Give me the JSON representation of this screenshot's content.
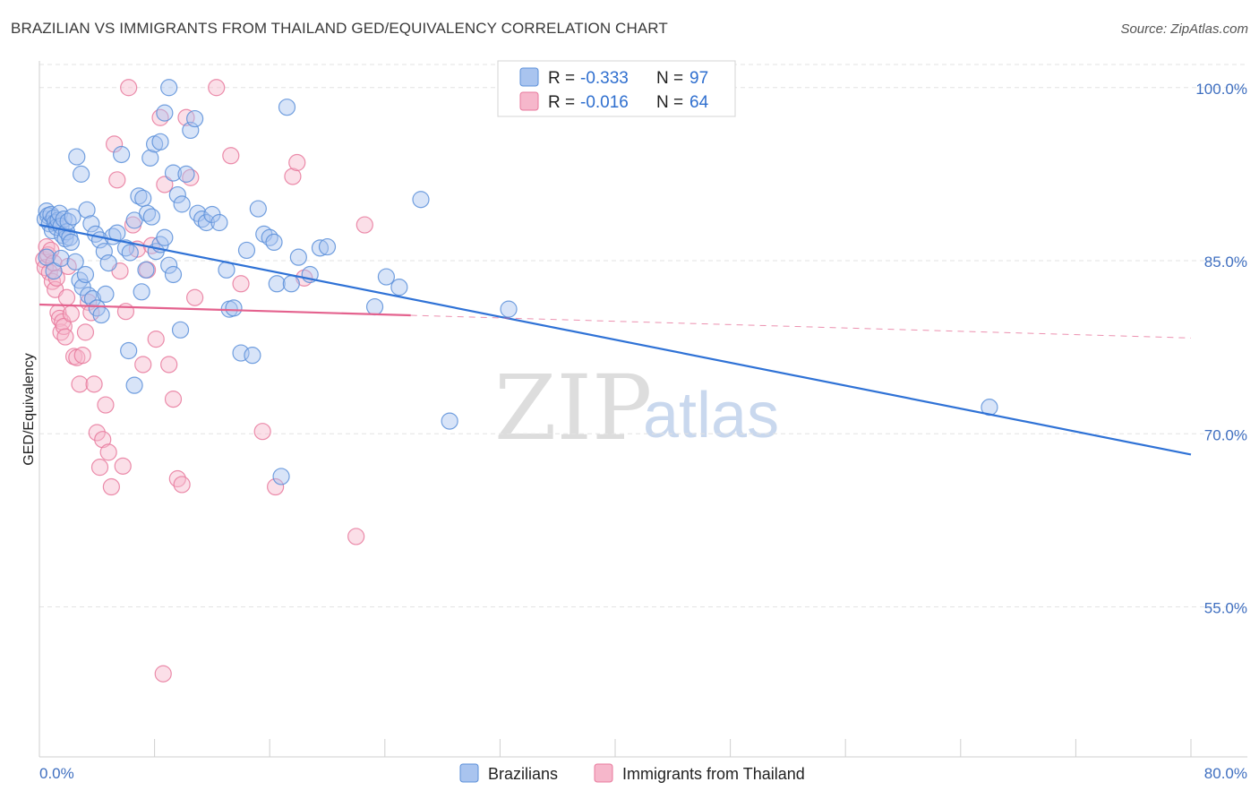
{
  "title": "BRAZILIAN VS IMMIGRANTS FROM THAILAND GED/EQUIVALENCY CORRELATION CHART",
  "source": "Source: ZipAtlas.com",
  "watermark": {
    "zip": "ZIP",
    "atlas": "atlas"
  },
  "colors": {
    "blue": "#5b8fd9",
    "blue_fill": "#a9c4ef",
    "blue_line": "#2f72d6",
    "pink": "#e8799c",
    "pink_fill": "#f6b7cb",
    "pink_line": "#e4628e",
    "grid": "#e3e3e3",
    "tick_label": "#3f6fc0"
  },
  "chart_data": {
    "type": "scatter",
    "title": "BRAZILIAN VS IMMIGRANTS FROM THAILAND GED/EQUIVALENCY CORRELATION CHART",
    "xlabel": "",
    "ylabel": "GED/Equivalency",
    "xlim": [
      0,
      80
    ],
    "ylim": [
      42,
      102
    ],
    "x_tick_labels": [
      "0.0%",
      "80.0%"
    ],
    "y_ticks": [
      55,
      70,
      85,
      100
    ],
    "y_tick_labels": [
      "55.0%",
      "70.0%",
      "85.0%",
      "100.0%"
    ],
    "legend": [
      {
        "name": "Brazilians",
        "r_label": "R =",
        "r": "-0.333",
        "n_label": "N =",
        "n": "97"
      },
      {
        "name": "Immigrants from Thailand",
        "r_label": "R =",
        "r": "-0.016",
        "n_label": "N =",
        "n": "64"
      }
    ],
    "series": [
      {
        "name": "Brazilians",
        "trend": {
          "x": [
            0,
            80
          ],
          "y": [
            88.1,
            68.2
          ],
          "dashed_from": null
        },
        "points": [
          [
            0.4,
            88.6
          ],
          [
            0.5,
            89.3
          ],
          [
            0.6,
            88.9
          ],
          [
            0.7,
            88.2
          ],
          [
            0.8,
            89.0
          ],
          [
            0.9,
            87.6
          ],
          [
            1.0,
            88.7
          ],
          [
            1.1,
            88.3
          ],
          [
            1.2,
            87.9
          ],
          [
            1.3,
            88.5
          ],
          [
            1.4,
            89.1
          ],
          [
            1.5,
            88.0
          ],
          [
            1.6,
            87.2
          ],
          [
            1.7,
            88.6
          ],
          [
            1.8,
            86.9
          ],
          [
            1.9,
            87.5
          ],
          [
            2.0,
            88.4
          ],
          [
            2.1,
            87.0
          ],
          [
            2.2,
            86.6
          ],
          [
            2.3,
            88.8
          ],
          [
            0.5,
            85.3
          ],
          [
            1.0,
            84.1
          ],
          [
            1.5,
            85.2
          ],
          [
            2.5,
            84.9
          ],
          [
            2.8,
            83.3
          ],
          [
            3.0,
            82.7
          ],
          [
            3.2,
            83.8
          ],
          [
            3.4,
            82.0
          ],
          [
            3.7,
            81.7
          ],
          [
            4.0,
            80.9
          ],
          [
            4.3,
            80.3
          ],
          [
            4.6,
            82.1
          ],
          [
            2.6,
            94.0
          ],
          [
            2.9,
            92.5
          ],
          [
            3.3,
            89.4
          ],
          [
            3.6,
            88.2
          ],
          [
            3.9,
            87.3
          ],
          [
            4.2,
            86.8
          ],
          [
            4.5,
            85.8
          ],
          [
            4.8,
            84.8
          ],
          [
            5.1,
            87.1
          ],
          [
            5.4,
            87.4
          ],
          [
            5.7,
            94.2
          ],
          [
            6.0,
            86.1
          ],
          [
            6.3,
            85.7
          ],
          [
            6.6,
            88.5
          ],
          [
            6.9,
            90.6
          ],
          [
            7.2,
            90.4
          ],
          [
            7.5,
            89.1
          ],
          [
            7.8,
            88.8
          ],
          [
            8.1,
            85.8
          ],
          [
            8.4,
            86.4
          ],
          [
            8.7,
            87.0
          ],
          [
            9.0,
            84.6
          ],
          [
            9.3,
            83.8
          ],
          [
            6.2,
            77.2
          ],
          [
            6.6,
            74.2
          ],
          [
            7.1,
            82.3
          ],
          [
            7.4,
            84.2
          ],
          [
            7.7,
            93.9
          ],
          [
            8.0,
            95.1
          ],
          [
            8.4,
            95.3
          ],
          [
            8.7,
            97.8
          ],
          [
            9.0,
            100.0
          ],
          [
            9.3,
            92.6
          ],
          [
            9.6,
            90.7
          ],
          [
            9.9,
            89.9
          ],
          [
            10.2,
            92.5
          ],
          [
            10.5,
            96.3
          ],
          [
            10.8,
            97.3
          ],
          [
            11.0,
            89.1
          ],
          [
            11.3,
            88.6
          ],
          [
            11.6,
            88.3
          ],
          [
            12.0,
            89.0
          ],
          [
            12.5,
            88.3
          ],
          [
            13.2,
            80.8
          ],
          [
            13.5,
            80.9
          ],
          [
            13.0,
            84.2
          ],
          [
            14.0,
            77.0
          ],
          [
            14.4,
            85.9
          ],
          [
            14.8,
            76.8
          ],
          [
            15.2,
            89.5
          ],
          [
            15.6,
            87.3
          ],
          [
            16.0,
            87.0
          ],
          [
            16.3,
            86.6
          ],
          [
            16.5,
            83.0
          ],
          [
            17.2,
            98.3
          ],
          [
            18.0,
            85.3
          ],
          [
            18.8,
            83.8
          ],
          [
            19.5,
            86.1
          ],
          [
            17.5,
            83.0
          ],
          [
            16.8,
            66.3
          ],
          [
            20.0,
            86.2
          ],
          [
            23.3,
            81.0
          ],
          [
            24.1,
            83.6
          ],
          [
            25.0,
            82.7
          ],
          [
            26.5,
            90.3
          ],
          [
            28.5,
            71.1
          ],
          [
            32.6,
            80.8
          ],
          [
            9.8,
            79.0
          ],
          [
            66.0,
            72.3
          ]
        ]
      },
      {
        "name": "Immigrants from Thailand",
        "trend": {
          "x": [
            0,
            80
          ],
          "y": [
            81.2,
            78.3
          ],
          "dashed_from": 25.8
        },
        "points": [
          [
            0.3,
            85.1
          ],
          [
            0.4,
            84.4
          ],
          [
            0.5,
            86.2
          ],
          [
            0.6,
            85.5
          ],
          [
            0.7,
            84.0
          ],
          [
            0.8,
            85.9
          ],
          [
            0.9,
            83.2
          ],
          [
            1.0,
            84.8
          ],
          [
            1.1,
            82.5
          ],
          [
            1.2,
            83.5
          ],
          [
            1.3,
            80.5
          ],
          [
            1.4,
            80.0
          ],
          [
            1.5,
            78.8
          ],
          [
            1.6,
            79.7
          ],
          [
            1.7,
            79.3
          ],
          [
            1.8,
            78.4
          ],
          [
            1.9,
            81.8
          ],
          [
            2.0,
            84.5
          ],
          [
            2.2,
            80.4
          ],
          [
            2.4,
            76.7
          ],
          [
            2.6,
            76.6
          ],
          [
            2.8,
            74.3
          ],
          [
            3.0,
            76.8
          ],
          [
            3.2,
            78.8
          ],
          [
            3.4,
            81.4
          ],
          [
            3.6,
            80.5
          ],
          [
            3.8,
            74.3
          ],
          [
            4.0,
            70.1
          ],
          [
            4.2,
            67.1
          ],
          [
            4.4,
            69.5
          ],
          [
            4.6,
            72.5
          ],
          [
            4.8,
            68.4
          ],
          [
            5.0,
            65.4
          ],
          [
            5.2,
            95.1
          ],
          [
            5.4,
            92.0
          ],
          [
            5.6,
            84.1
          ],
          [
            5.8,
            67.2
          ],
          [
            6.0,
            80.6
          ],
          [
            6.2,
            100.0
          ],
          [
            6.5,
            88.1
          ],
          [
            6.8,
            86.0
          ],
          [
            7.2,
            76.0
          ],
          [
            7.5,
            84.2
          ],
          [
            7.8,
            86.3
          ],
          [
            8.1,
            78.2
          ],
          [
            8.4,
            97.4
          ],
          [
            8.7,
            91.6
          ],
          [
            9.0,
            76.0
          ],
          [
            9.3,
            73.0
          ],
          [
            9.6,
            66.1
          ],
          [
            9.9,
            65.6
          ],
          [
            10.2,
            97.4
          ],
          [
            10.5,
            92.2
          ],
          [
            10.8,
            81.8
          ],
          [
            12.3,
            100.0
          ],
          [
            13.3,
            94.1
          ],
          [
            14.0,
            83.0
          ],
          [
            15.5,
            70.2
          ],
          [
            16.4,
            65.4
          ],
          [
            17.6,
            92.3
          ],
          [
            17.9,
            93.5
          ],
          [
            18.4,
            83.5
          ],
          [
            22.0,
            61.1
          ],
          [
            22.6,
            88.1
          ],
          [
            8.6,
            49.2
          ]
        ]
      }
    ]
  },
  "bottom_legend": [
    "Brazilians",
    "Immigrants from Thailand"
  ]
}
